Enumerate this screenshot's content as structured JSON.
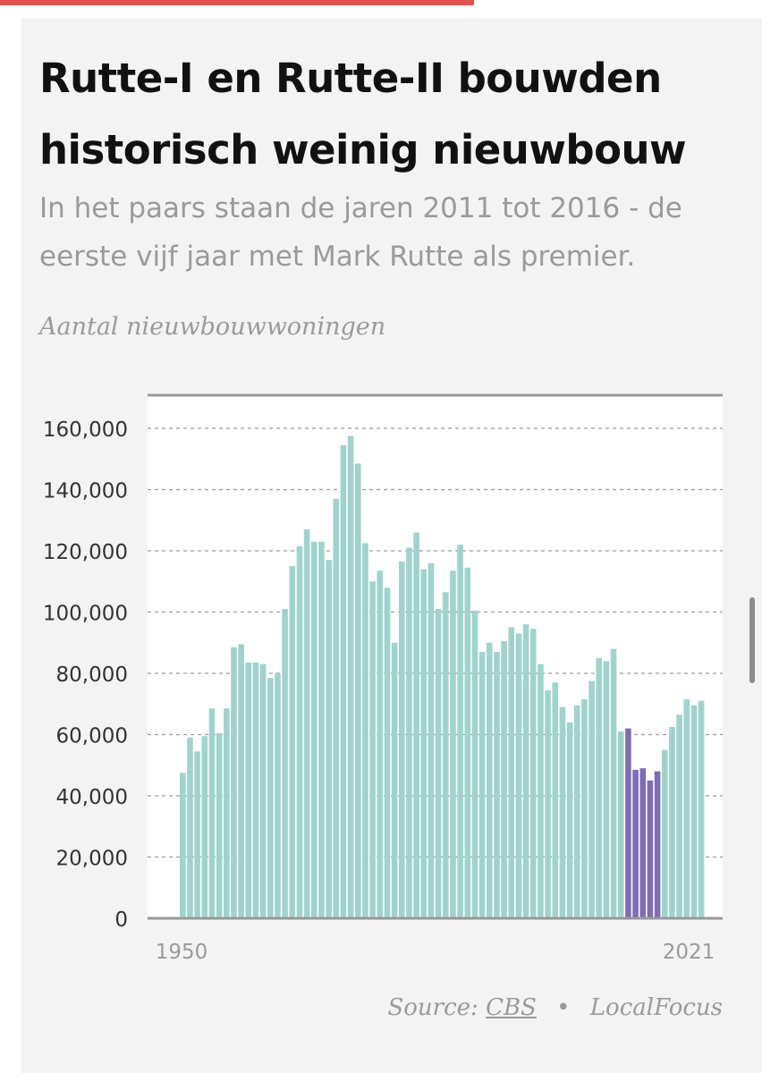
{
  "header": {
    "title": "Rutte-I en Rutte-II bouwden historisch weinig nieuwbouw",
    "subtitle": "In het paars staan de jaren 2011 tot 2016 - de eerste vijf jaar met Mark Rutte als premier.",
    "axis_title": "Aantal nieuwbouwwoningen"
  },
  "footer": {
    "source_label": "Source:",
    "source_link": "CBS",
    "separator": "•",
    "credit": "LocalFocus"
  },
  "colors": {
    "accent_rule": "#e0524f",
    "bar_default": "#a0d3cd",
    "bar_highlight": "#7f6db4",
    "gridline": "#9a9a9a",
    "axis_line": "#999999"
  },
  "chart_data": {
    "type": "bar",
    "title": "Rutte-I en Rutte-II bouwden historisch weinig nieuwbouw",
    "subtitle": "In het paars staan de jaren 2011 tot 2016 - de eerste vijf jaar met Mark Rutte als premier.",
    "ylabel": "Aantal nieuwbouwwoningen",
    "xlabel": "",
    "x_tick_labels": [
      "1950",
      "2021"
    ],
    "y_ticks": [
      0,
      20000,
      40000,
      60000,
      80000,
      100000,
      120000,
      140000,
      160000
    ],
    "y_tick_labels": [
      "0",
      "20,000",
      "40,000",
      "60,000",
      "80,000",
      "100,000",
      "120,000",
      "140,000",
      "160,000"
    ],
    "ylim": [
      0,
      170000
    ],
    "grid": true,
    "highlight_years": [
      2011,
      2012,
      2013,
      2014,
      2015
    ],
    "categories": [
      1950,
      1951,
      1952,
      1953,
      1954,
      1955,
      1956,
      1957,
      1958,
      1959,
      1960,
      1961,
      1962,
      1963,
      1964,
      1965,
      1966,
      1967,
      1968,
      1969,
      1970,
      1971,
      1972,
      1973,
      1974,
      1975,
      1976,
      1977,
      1978,
      1979,
      1980,
      1981,
      1982,
      1983,
      1984,
      1985,
      1986,
      1987,
      1988,
      1989,
      1990,
      1991,
      1992,
      1993,
      1994,
      1995,
      1996,
      1997,
      1998,
      1999,
      2000,
      2001,
      2002,
      2003,
      2004,
      2005,
      2006,
      2007,
      2008,
      2009,
      2010,
      2011,
      2012,
      2013,
      2014,
      2015,
      2016,
      2017,
      2018,
      2019,
      2020,
      2021
    ],
    "values": [
      47500,
      59000,
      54500,
      59500,
      68500,
      60500,
      68500,
      88500,
      89500,
      83500,
      83500,
      83000,
      78500,
      80000,
      101000,
      115000,
      121500,
      127000,
      123000,
      123000,
      117000,
      137000,
      154500,
      157500,
      148500,
      122500,
      110000,
      113500,
      108000,
      90000,
      116500,
      121000,
      126000,
      114000,
      116000,
      101000,
      106500,
      113500,
      122000,
      114500,
      100500,
      87000,
      90000,
      87000,
      90500,
      95000,
      93000,
      96000,
      94500,
      83000,
      74500,
      77000,
      69000,
      64000,
      69500,
      71500,
      77500,
      85000,
      84000,
      88000,
      61000,
      62000,
      48500,
      49000,
      45000,
      48000,
      55000,
      62500,
      66500,
      71500,
      69500,
      71000
    ]
  }
}
